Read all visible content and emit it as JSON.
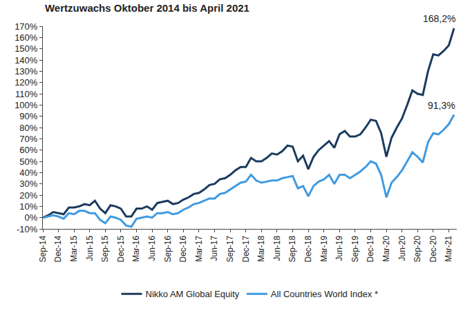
{
  "chart_data": {
    "type": "line",
    "title": "Wertzuwachs Oktober 2014 bis April 2021",
    "categories": [
      "Sep-14",
      null,
      null,
      "Dec-14",
      null,
      null,
      "Mar-15",
      null,
      null,
      "Jun-15",
      null,
      null,
      "Sep-15",
      null,
      null,
      "Dec-15",
      null,
      null,
      "Mar-16",
      null,
      null,
      "Jun-16",
      null,
      null,
      "Sep-16",
      null,
      null,
      "Dec-16",
      null,
      null,
      "Mar-17",
      null,
      null,
      "Jun-17",
      null,
      null,
      "Sep-17",
      null,
      null,
      "Dec-17",
      null,
      null,
      "Mar-18",
      null,
      null,
      "Jun-18",
      null,
      null,
      "Sep-18",
      null,
      null,
      "Dec-18",
      null,
      null,
      "Mar-19",
      null,
      null,
      "Jun-19",
      null,
      null,
      "Sep-19",
      null,
      null,
      "Dec-19",
      null,
      null,
      "Mar-20",
      null,
      null,
      "Jun-20",
      null,
      null,
      "Sep-20",
      null,
      null,
      "Dec-20",
      null,
      null,
      "Mar-21",
      null
    ],
    "series": [
      {
        "name": "Nikko AM Global Equity",
        "color": "#1b3a5e",
        "values": [
          0,
          2,
          5,
          4,
          3,
          9,
          9,
          10,
          12,
          11,
          15,
          8,
          4,
          11,
          10,
          8,
          1,
          1,
          8,
          8,
          10,
          7,
          13,
          14,
          15,
          12,
          13,
          16,
          18,
          21,
          22,
          25,
          29,
          30,
          34,
          35,
          38,
          42,
          45,
          45,
          53,
          50,
          50,
          53,
          57,
          56,
          59,
          64,
          63,
          50,
          55,
          43,
          54,
          60,
          64,
          68,
          62,
          74,
          77,
          72,
          72,
          74,
          80,
          87,
          86,
          75,
          54,
          71,
          80,
          88,
          100,
          113,
          110,
          109,
          130,
          145,
          144,
          148,
          153,
          168.2
        ],
        "value_labels": [
          null,
          null,
          null,
          null,
          null,
          null,
          null,
          null,
          null,
          null,
          null,
          null,
          null,
          null,
          null,
          null,
          null,
          null,
          null,
          null,
          null,
          null,
          null,
          null,
          null,
          null,
          null,
          null,
          null,
          null,
          null,
          null,
          null,
          null,
          null,
          null,
          null,
          null,
          null,
          null,
          null,
          null,
          null,
          null,
          null,
          null,
          null,
          null,
          null,
          null,
          null,
          null,
          null,
          null,
          null,
          null,
          null,
          null,
          null,
          null,
          null,
          null,
          null,
          null,
          null,
          null,
          null,
          null,
          null,
          null,
          null,
          null,
          null,
          null,
          null,
          null,
          null,
          null,
          null,
          "168,2%"
        ]
      },
      {
        "name": "All Countries World Index *",
        "color": "#3f9ae0",
        "values": [
          0,
          1,
          2,
          1,
          -1,
          4,
          3,
          6,
          6,
          4,
          4,
          -2,
          -5,
          1,
          0,
          -2,
          -7,
          -8,
          -1,
          0,
          1,
          0,
          4,
          4,
          5,
          3,
          4,
          7,
          9,
          12,
          13,
          15,
          17,
          17,
          21,
          22,
          25,
          28,
          31,
          32,
          38,
          33,
          31,
          32,
          33,
          33,
          35,
          36,
          37,
          26,
          28,
          19,
          28,
          32,
          34,
          38,
          30,
          38,
          38,
          35,
          38,
          41,
          45,
          50,
          48,
          38,
          18,
          31,
          36,
          42,
          50,
          58,
          54,
          49,
          67,
          75,
          74,
          78,
          83,
          91.3
        ],
        "value_labels": [
          null,
          null,
          null,
          null,
          null,
          null,
          null,
          null,
          null,
          null,
          null,
          null,
          null,
          null,
          null,
          null,
          null,
          null,
          null,
          null,
          null,
          null,
          null,
          null,
          null,
          null,
          null,
          null,
          null,
          null,
          null,
          null,
          null,
          null,
          null,
          null,
          null,
          null,
          null,
          null,
          null,
          null,
          null,
          null,
          null,
          null,
          null,
          null,
          null,
          null,
          null,
          null,
          null,
          null,
          null,
          null,
          null,
          null,
          null,
          null,
          null,
          null,
          null,
          null,
          null,
          null,
          null,
          null,
          null,
          null,
          null,
          null,
          null,
          null,
          null,
          null,
          null,
          null,
          null,
          "91,3%"
        ]
      }
    ],
    "ylim": [
      -10,
      170
    ],
    "yticks": [
      {
        "value": -10,
        "label": "-10%"
      },
      {
        "value": 0,
        "label": "0%"
      },
      {
        "value": 10,
        "label": "10%"
      },
      {
        "value": 20,
        "label": "20%"
      },
      {
        "value": 30,
        "label": "30%"
      },
      {
        "value": 40,
        "label": "40%"
      },
      {
        "value": 50,
        "label": "50%"
      },
      {
        "value": 60,
        "label": "60%"
      },
      {
        "value": 70,
        "label": "70%"
      },
      {
        "value": 80,
        "label": "80%"
      },
      {
        "value": 90,
        "label": "90%"
      },
      {
        "value": 100,
        "label": "100%"
      },
      {
        "value": 110,
        "label": "110%"
      },
      {
        "value": 120,
        "label": "120%"
      },
      {
        "value": 130,
        "label": "130%"
      },
      {
        "value": 140,
        "label": "140%"
      },
      {
        "value": 150,
        "label": "150%"
      },
      {
        "value": 160,
        "label": "160%"
      },
      {
        "value": 170,
        "label": "170%"
      }
    ],
    "grid": false,
    "legend": "bottom"
  }
}
